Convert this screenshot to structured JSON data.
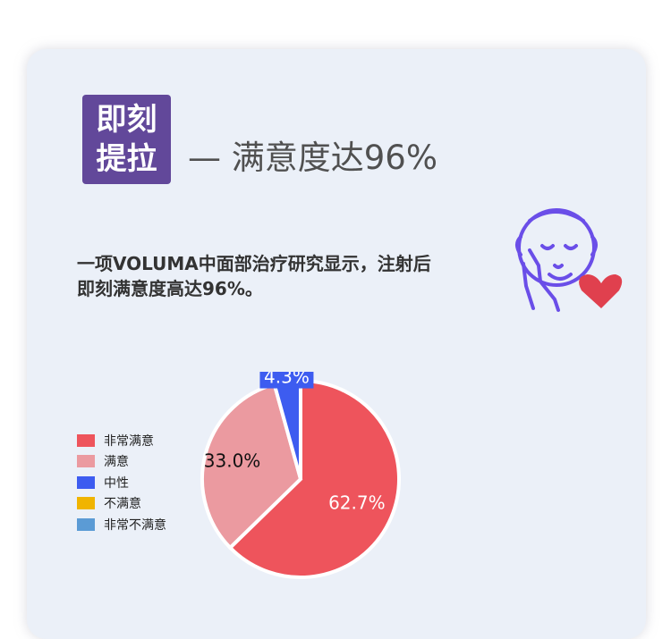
{
  "badge": {
    "line1": "即刻",
    "line2": "提拉"
  },
  "headline": "— 满意度达96%",
  "description": {
    "line1": "一项VOLUMA中面部治疗研究显示，注射后",
    "line2": "即刻满意度高达96%。"
  },
  "illustration": {
    "icon": "face-with-heart-icon",
    "face_color": "#6a4ee8",
    "heart_color": "#e0404e"
  },
  "chart_data": {
    "type": "pie",
    "legend_position": "left",
    "categories": [
      "非常满意",
      "满意",
      "中性",
      "不满意",
      "非常不满意"
    ],
    "values": [
      62.7,
      33.0,
      4.3,
      0,
      0
    ],
    "labels": [
      "62.7%",
      "33.0%",
      "4.3%",
      "",
      ""
    ],
    "colors": [
      "#ee545c",
      "#eb9aa0",
      "#3d5cf0",
      "#f0b400",
      "#5b9bd5"
    ]
  }
}
